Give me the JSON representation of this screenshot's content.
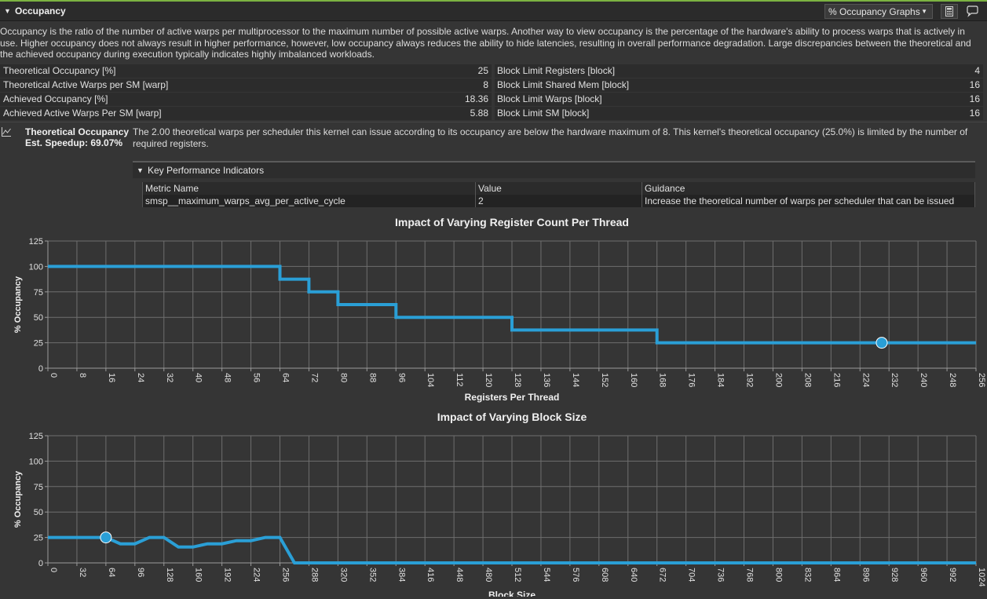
{
  "header": {
    "title": "Occupancy",
    "dropdown_value": "% Occupancy Graphs",
    "accent_color": "#7cb342"
  },
  "description": "Occupancy is the ratio of the number of active warps per multiprocessor to the maximum number of possible active warps. Another way to view occupancy is the percentage of the hardware's ability to process warps that is actively in use. Higher occupancy does not always result in higher performance, however, low occupancy always reduces the ability to hide latencies, resulting in overall performance degradation. Large discrepancies between the theoretical and the achieved occupancy during execution typically indicates highly imbalanced workloads.",
  "metrics": [
    {
      "label": "Theoretical Occupancy [%]",
      "value": "25",
      "label2": "Block Limit Registers [block]",
      "value2": "4"
    },
    {
      "label": "Theoretical Active Warps per SM [warp]",
      "value": "8",
      "label2": "Block Limit Shared Mem [block]",
      "value2": "16"
    },
    {
      "label": "Achieved Occupancy [%]",
      "value": "18.36",
      "label2": "Block Limit Warps [block]",
      "value2": "16"
    },
    {
      "label": "Achieved Active Warps Per SM [warp]",
      "value": "5.88",
      "label2": "Block Limit SM [block]",
      "value2": "16"
    }
  ],
  "rule": {
    "title": "Theoretical Occupancy",
    "speedup": "Est. Speedup: 69.07%",
    "body": "The 2.00 theoretical warps per scheduler this kernel can issue according to its occupancy are below the hardware maximum of 8. This kernel's theoretical occupancy (25.0%) is limited by the number of required registers."
  },
  "kpi": {
    "title": "Key Performance Indicators",
    "headers": [
      "Metric Name",
      "Value",
      "Guidance"
    ],
    "row": [
      "smsp__maximum_warps_avg_per_active_cycle",
      "2",
      "Increase the theoretical number of warps per scheduler that can be issued"
    ]
  },
  "chart_data": [
    {
      "type": "line",
      "title": "Impact of Varying Register Count Per Thread",
      "xlabel": "Registers Per Thread",
      "ylabel": "% Occupancy",
      "xlim": [
        0,
        256
      ],
      "ylim": [
        0,
        125
      ],
      "x_ticks": [
        0,
        8,
        16,
        24,
        32,
        40,
        48,
        56,
        64,
        72,
        80,
        88,
        96,
        104,
        112,
        120,
        128,
        136,
        144,
        152,
        160,
        168,
        176,
        184,
        192,
        200,
        208,
        216,
        224,
        232,
        240,
        248,
        256
      ],
      "y_ticks": [
        0,
        25,
        50,
        75,
        100,
        125
      ],
      "line_color": "#2a9fd6",
      "series": [
        {
          "x": [
            0,
            64,
            64,
            72,
            72,
            80,
            80,
            96,
            96,
            128,
            128,
            168,
            168,
            256
          ],
          "y": [
            100,
            100,
            87.5,
            87.5,
            75,
            75,
            62.5,
            62.5,
            50,
            50,
            37.5,
            37.5,
            25,
            25
          ]
        }
      ],
      "marker": {
        "x": 230,
        "y": 25
      },
      "grid": true
    },
    {
      "type": "line",
      "title": "Impact of Varying Block Size",
      "xlabel": "Block Size",
      "ylabel": "% Occupancy",
      "xlim": [
        0,
        1024
      ],
      "ylim": [
        0,
        125
      ],
      "x_ticks": [
        0,
        32,
        64,
        96,
        128,
        160,
        192,
        224,
        256,
        288,
        320,
        352,
        384,
        416,
        448,
        480,
        512,
        544,
        576,
        608,
        640,
        672,
        704,
        736,
        768,
        800,
        832,
        864,
        896,
        928,
        960,
        992,
        1024
      ],
      "y_ticks": [
        0,
        25,
        50,
        75,
        100,
        125
      ],
      "line_color": "#2a9fd6",
      "series": [
        {
          "x": [
            0,
            32,
            64,
            80,
            96,
            112,
            128,
            144,
            160,
            176,
            192,
            208,
            224,
            240,
            256,
            272,
            288,
            1024
          ],
          "y": [
            25,
            25,
            25,
            18.75,
            18.75,
            25,
            25,
            15.625,
            15.625,
            18.75,
            18.75,
            21.875,
            21.875,
            25,
            25,
            0,
            0,
            0
          ]
        }
      ],
      "marker": {
        "x": 64,
        "y": 25
      },
      "grid": true
    }
  ]
}
